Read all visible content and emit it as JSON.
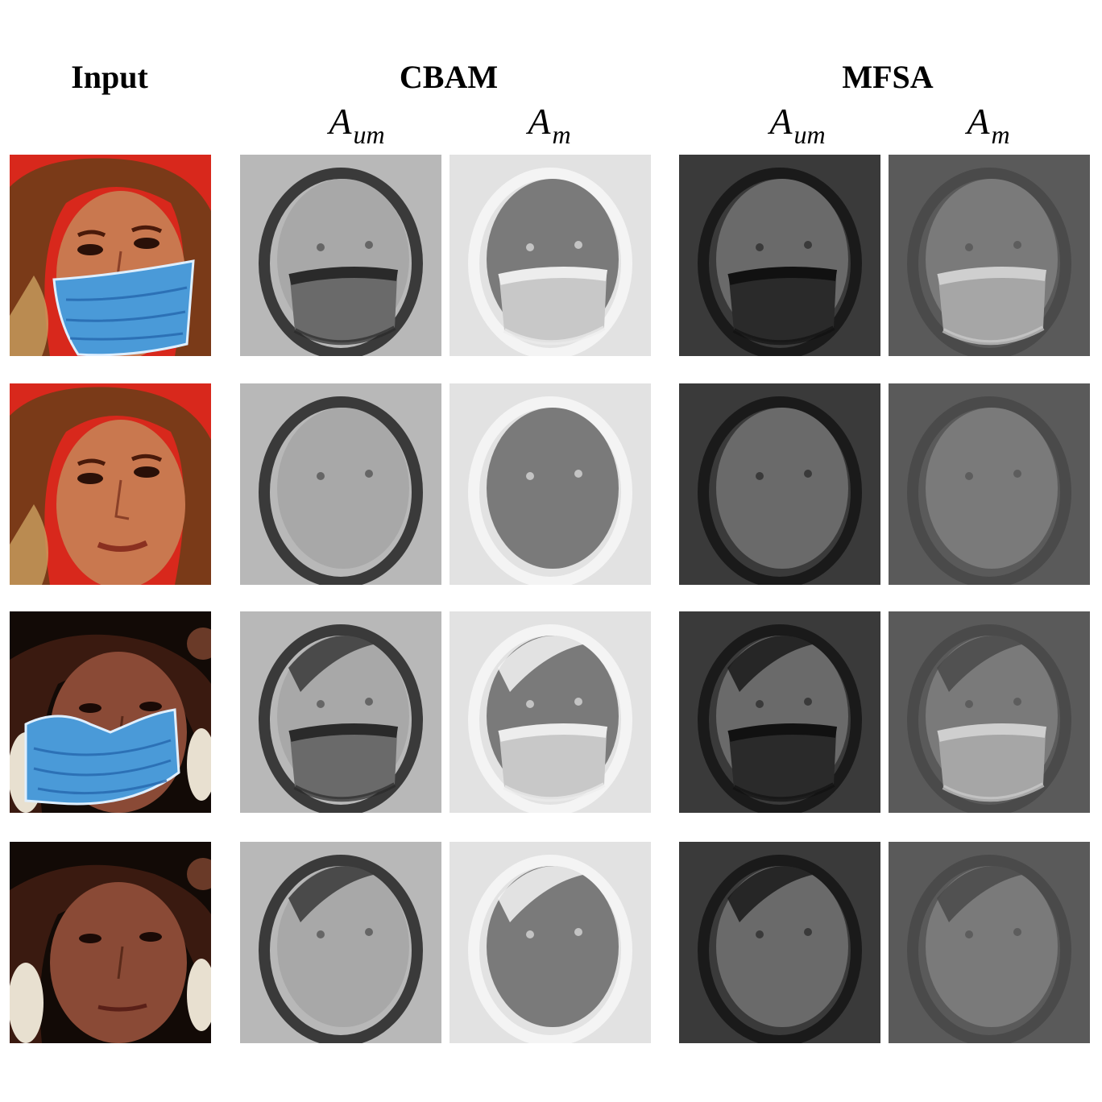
{
  "headers": {
    "input": "Input",
    "cbam": "CBAM",
    "mfsa": "MFSA"
  },
  "subheaders": [
    {
      "main": "A",
      "sub": "um"
    },
    {
      "main": "A",
      "sub": "m"
    },
    {
      "main": "A",
      "sub": "um"
    },
    {
      "main": "A",
      "sub": "m"
    }
  ],
  "rows": [
    {
      "subject": "woman-red-background",
      "masked": true,
      "cells": [
        "input-photo",
        "cbam-aum-map",
        "cbam-am-map",
        "mfsa-aum-map",
        "mfsa-am-map"
      ]
    },
    {
      "subject": "woman-red-background",
      "masked": false,
      "cells": [
        "input-photo",
        "cbam-aum-map",
        "cbam-am-map",
        "mfsa-aum-map",
        "mfsa-am-map"
      ]
    },
    {
      "subject": "woman-dark-background",
      "masked": true,
      "cells": [
        "input-photo",
        "cbam-aum-map",
        "cbam-am-map",
        "mfsa-aum-map",
        "mfsa-am-map"
      ]
    },
    {
      "subject": "woman-dark-background",
      "masked": false,
      "cells": [
        "input-photo",
        "cbam-aum-map",
        "cbam-am-map",
        "mfsa-aum-map",
        "mfsa-am-map"
      ]
    }
  ],
  "colors": {
    "mask": "#4a9ad8",
    "red_bg": "#d8281c",
    "dark_bg": "#120a06"
  }
}
